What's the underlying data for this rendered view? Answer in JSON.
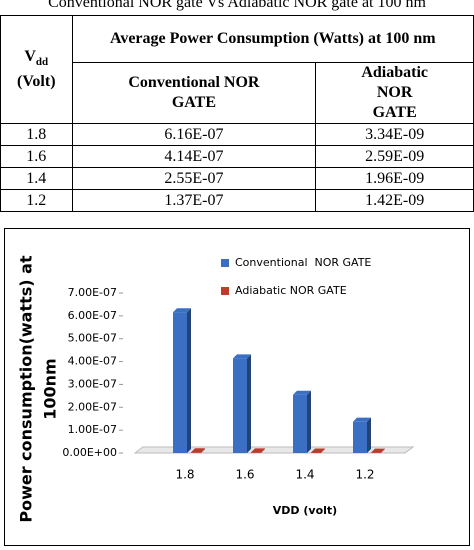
{
  "caption": "Conventional NOR gate Vs Adiabatic NOR gate at 100 nm",
  "table": {
    "vdd_symbol": "V",
    "vdd_subscript": "dd",
    "vdd_unit": "(Volt)",
    "group_header": "Average Power Consumption (Watts) at 100 nm",
    "subheaders": [
      "Conventional  NOR GATE",
      "Adiabatic NOR GATE"
    ],
    "rows": [
      [
        "1.8",
        "6.16E-07",
        "3.34E-09"
      ],
      [
        "1.6",
        "4.14E-07",
        "2.59E-09"
      ],
      [
        "1.4",
        "2.55E-07",
        "1.96E-09"
      ],
      [
        "1.2",
        "1.37E-07",
        "1.42E-09"
      ]
    ]
  },
  "chart_data": {
    "type": "bar",
    "categories": [
      "1.8",
      "1.6",
      "1.4",
      "1.2"
    ],
    "series": [
      {
        "name": "Conventional  NOR GATE",
        "color": "#3a6fc4",
        "values": [
          6.16e-07,
          4.14e-07,
          2.55e-07,
          1.37e-07
        ]
      },
      {
        "name": "Adiabatic NOR GATE",
        "color": "#c0392b",
        "values": [
          3.34e-09,
          2.59e-09,
          1.96e-09,
          1.42e-09
        ]
      }
    ],
    "ylim": [
      0,
      7e-07
    ],
    "yticks": [
      {
        "value": 0,
        "label": "0.00E+00"
      },
      {
        "value": 1e-07,
        "label": "1.00E-07"
      },
      {
        "value": 2e-07,
        "label": "2.00E-07"
      },
      {
        "value": 3e-07,
        "label": "3.00E-07"
      },
      {
        "value": 4e-07,
        "label": "4.00E-07"
      },
      {
        "value": 5e-07,
        "label": "5.00E-07"
      },
      {
        "value": 6e-07,
        "label": "6.00E-07"
      },
      {
        "value": 7e-07,
        "label": "7.00E-07"
      }
    ],
    "x_label": "VDD (volt)",
    "y_label_lines": [
      "Power consumption(watts) at",
      "100nm"
    ]
  }
}
